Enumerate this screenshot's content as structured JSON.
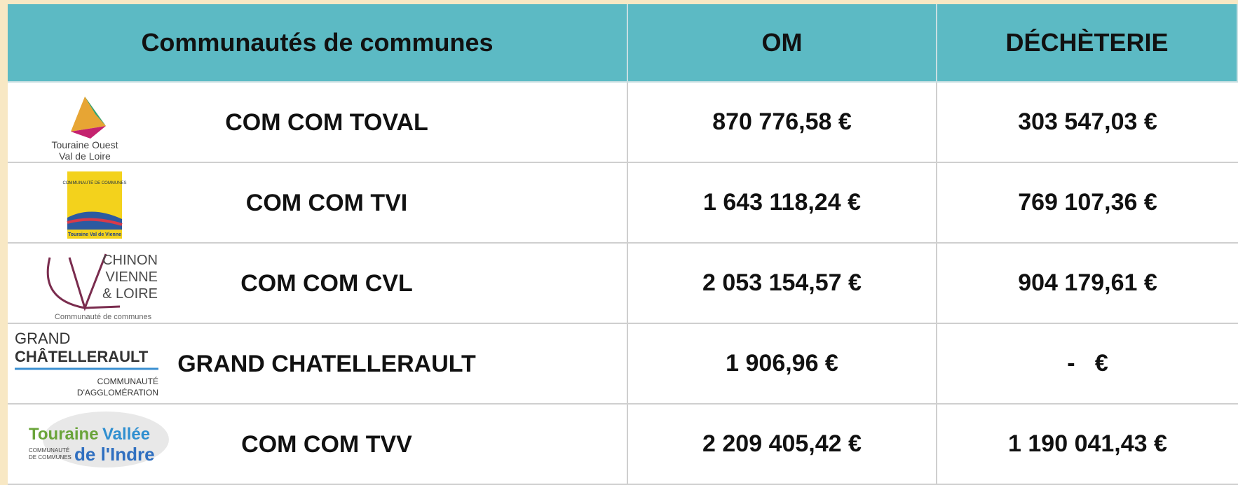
{
  "table": {
    "header": [
      "Communautés de communes",
      "OM",
      "DÉCHÈTERIE"
    ],
    "rows": [
      {
        "logo": [
          "Touraine Ouest",
          "Val de Loire"
        ],
        "name": "COM COM TOVAL",
        "om": "870 776,58 €",
        "decheterie": "303 547,03 €"
      },
      {
        "logo": [
          "COMMUNAUTÉ DE COMMUNES",
          "Touraine Val de Vienne"
        ],
        "name": "COM COM TVI",
        "om": "1 643 118,24 €",
        "decheterie": "769 107,36 €"
      },
      {
        "logo": [
          "CHINON",
          "VIENNE",
          "& LOIRE",
          "Communauté de communes"
        ],
        "name": "COM COM CVL",
        "om": "2 053 154,57 €",
        "decheterie": "904 179,61 €"
      },
      {
        "logo": [
          "GRAND",
          "CHÂTELLERAULT",
          "COMMUNAUTÉ",
          "D'AGGLOMÉRATION"
        ],
        "name": "GRAND CHATELLERAULT",
        "om": "1 906,96 €",
        "decheterie": "-   €"
      },
      {
        "logo": [
          "Touraine",
          "Vallée",
          "de l'Indre",
          "COMMUNAUTÉ",
          "DE COMMUNES"
        ],
        "name": "COM COM TVV",
        "om": "2 209 405,42 €",
        "decheterie": "1 190 041,43 €"
      }
    ]
  }
}
